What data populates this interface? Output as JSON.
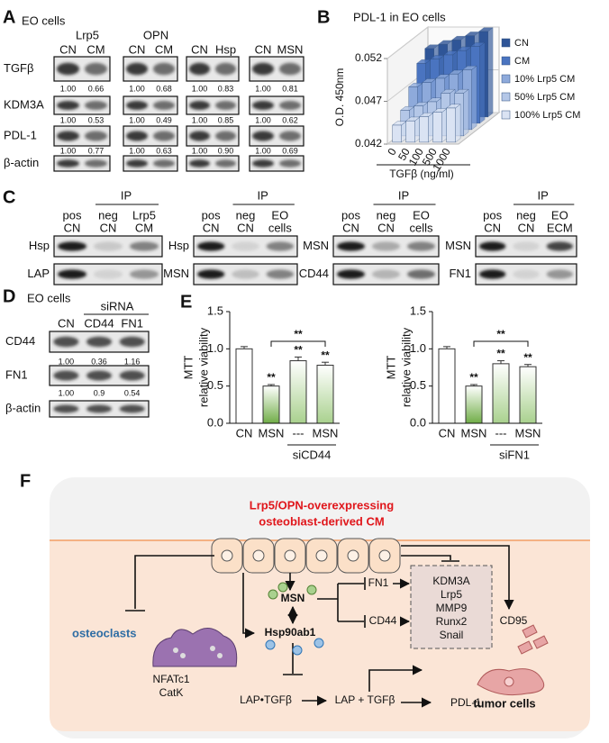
{
  "panel_a": {
    "letter": "A",
    "subtitle": "EO cells",
    "rows": [
      "TGFβ",
      "KDM3A",
      "PDL-1",
      "β-actin"
    ],
    "groups": [
      {
        "header": "Lrp5",
        "lanes": [
          "CN",
          "CM"
        ],
        "quant": [
          [
            "1.00",
            "0.66"
          ],
          [
            "1.00",
            "0.53"
          ],
          [
            "1.00",
            "0.77"
          ]
        ]
      },
      {
        "header": "OPN",
        "lanes": [
          "CN",
          "CM"
        ],
        "quant": [
          [
            "1.00",
            "0.68"
          ],
          [
            "1.00",
            "0.49"
          ],
          [
            "1.00",
            "0.63"
          ]
        ]
      },
      {
        "lanes": [
          "CN",
          "Hsp"
        ],
        "quant": [
          [
            "1.00",
            "0.83"
          ],
          [
            "1.00",
            "0.85"
          ],
          [
            "1.00",
            "0.90"
          ]
        ]
      },
      {
        "lanes": [
          "CN",
          "MSN"
        ],
        "quant": [
          [
            "1.00",
            "0.81"
          ],
          [
            "1.00",
            "0.62"
          ],
          [
            "1.00",
            "0.69"
          ]
        ]
      }
    ]
  },
  "chart_data": [
    {
      "type": "bar3d",
      "letter": "B",
      "title": "PDL-1 in EO cells",
      "ylabel": "O.D. 450nm",
      "xlabel": "TGFβ (ng/ml)",
      "categories": [
        "0",
        "50",
        "100",
        "500",
        "1000"
      ],
      "series": [
        {
          "name": "CN",
          "color": "#2f5597",
          "values": [
            0.05,
            0.0505,
            0.051,
            0.0515,
            0.052
          ]
        },
        {
          "name": "CM",
          "color": "#4a74c0",
          "values": [
            0.049,
            0.0495,
            0.05,
            0.0505,
            0.051
          ]
        },
        {
          "name": "10% Lrp5 CM",
          "color": "#8eaadb",
          "values": [
            0.047,
            0.0475,
            0.048,
            0.0485,
            0.049
          ]
        },
        {
          "name": "50% Lrp5 CM",
          "color": "#b4c7e7",
          "values": [
            0.045,
            0.0455,
            0.046,
            0.047,
            0.047
          ]
        },
        {
          "name": "100% Lrp5 CM",
          "color": "#dae3f3",
          "values": [
            0.044,
            0.0445,
            0.045,
            0.0455,
            0.046
          ]
        }
      ],
      "ylim": [
        0.042,
        0.052
      ],
      "yticks": [
        0.042,
        0.047,
        0.052
      ]
    },
    {
      "type": "bar",
      "letter": "E",
      "ylabel": [
        "MTT",
        "relative viability"
      ],
      "categories": [
        "CN",
        "MSN",
        "---",
        "MSN"
      ],
      "group_label": "siCD44",
      "values": [
        1.0,
        0.5,
        0.84,
        0.78
      ],
      "errors": [
        0.03,
        0.02,
        0.05,
        0.04
      ],
      "colors": [
        "#ffffff",
        "#70ad47",
        "#a9d18e",
        "#a9d18e"
      ],
      "annotations": [
        null,
        "**",
        "**",
        "**"
      ],
      "bracket": "**",
      "ylim": [
        0,
        1.5
      ],
      "yticks": [
        {
          "value": 0,
          "label": "0.0"
        },
        {
          "value": 0.5,
          "label": "0.5"
        },
        {
          "value": 1,
          "label": "1.0"
        },
        {
          "value": 1.5,
          "label": "1.5"
        }
      ]
    },
    {
      "type": "bar",
      "ylabel": [
        "MTT",
        "relative viability"
      ],
      "categories": [
        "CN",
        "MSN",
        "---",
        "MSN"
      ],
      "group_label": "siFN1",
      "values": [
        1.0,
        0.5,
        0.8,
        0.76
      ],
      "errors": [
        0.03,
        0.02,
        0.04,
        0.03
      ],
      "colors": [
        "#ffffff",
        "#70ad47",
        "#a9d18e",
        "#a9d18e"
      ],
      "annotations": [
        null,
        "**",
        "**",
        "**"
      ],
      "bracket": "**",
      "ylim": [
        0,
        1.5
      ],
      "yticks": [
        {
          "value": 0,
          "label": "0.0"
        },
        {
          "value": 0.5,
          "label": "0.5"
        },
        {
          "value": 1,
          "label": "1.0"
        },
        {
          "value": 1.5,
          "label": "1.5"
        }
      ]
    }
  ],
  "panel_c": {
    "letter": "C",
    "blots": [
      {
        "ip": "IP",
        "lanes": [
          [
            "pos",
            "CN"
          ],
          [
            "neg",
            "CN"
          ],
          [
            "Lrp5",
            "CM"
          ]
        ],
        "rows": [
          "Hsp",
          "LAP"
        ]
      },
      {
        "ip": "IP",
        "lanes": [
          [
            "pos",
            "CN"
          ],
          [
            "neg",
            "CN"
          ],
          [
            "EO",
            "cells"
          ]
        ],
        "rows": [
          "Hsp",
          "MSN"
        ]
      },
      {
        "ip": "IP",
        "lanes": [
          [
            "pos",
            "CN"
          ],
          [
            "neg",
            "CN"
          ],
          [
            "EO",
            "cells"
          ]
        ],
        "rows": [
          "MSN",
          "CD44"
        ]
      },
      {
        "ip": "IP",
        "lanes": [
          [
            "pos",
            "CN"
          ],
          [
            "neg",
            "CN"
          ],
          [
            "EO",
            "ECM"
          ]
        ],
        "rows": [
          "MSN",
          "FN1"
        ]
      }
    ]
  },
  "panel_d": {
    "letter": "D",
    "subtitle": "EO cells",
    "group": "siRNA",
    "lanes": [
      "CN",
      "CD44",
      "FN1"
    ],
    "rows": [
      "CD44",
      "FN1",
      "β-actin"
    ],
    "quant": [
      [
        "1.00",
        "0.36",
        "1.16"
      ],
      [
        "1.00",
        "0.9",
        "0.54"
      ]
    ]
  },
  "panel_f": {
    "letter": "F",
    "source": [
      "Lrp5/OPN-overexpressing",
      "osteoblast-derived CM"
    ],
    "osteoclasts": "osteoclasts",
    "osteoclast_markers": [
      "NFATc1",
      "CatK"
    ],
    "msn": "MSN",
    "hsp": "Hsp90ab1",
    "fn1": "FN1",
    "cd44": "CD44",
    "targets": [
      "KDM3A",
      "Lrp5",
      "MMP9",
      "Runx2",
      "Snail"
    ],
    "cd95": "CD95",
    "tumor": "tumor cells",
    "lap_complex": "LAP•TGFβ",
    "lap_free": "LAP + TGFβ",
    "pdl1": "PDL-1"
  }
}
